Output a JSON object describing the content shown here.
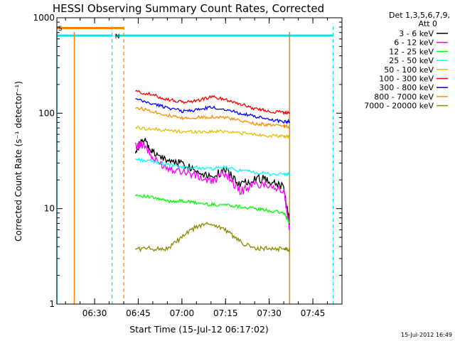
{
  "chart_data": {
    "type": "line",
    "title": "HESSI Observing Summary Count Rates, Corrected",
    "xlabel": "Start Time (15-Jul-12 06:17:02)",
    "ylabel": "Corrected Count Rate (s⁻¹ detector⁻¹)",
    "yscale": "log",
    "ylim": [
      1,
      1000
    ],
    "xlim": [
      "06:17:02",
      "07:55:00"
    ],
    "x_ticks": [
      "06:30",
      "06:45",
      "07:00",
      "07:15",
      "07:30",
      "07:45"
    ],
    "y_ticks": [
      "1",
      "10",
      "100",
      "1000"
    ],
    "legend_header": [
      "Det 1,3,5,6,7,9,",
      "Att 0"
    ],
    "legend_position": "outside-right",
    "footer_date": "15-Jul-2012 16:49",
    "flags": [
      {
        "label": "S",
        "color": "#ff8000"
      },
      {
        "label": "N",
        "color": "#00e5ee"
      }
    ],
    "series": [
      {
        "name": "3 - 6 keV",
        "color": "#000000",
        "x": [
          "06:44",
          "06:47",
          "06:50",
          "06:55",
          "07:00",
          "07:05",
          "07:10",
          "07:15",
          "07:20",
          "07:25",
          "07:30",
          "07:35",
          "07:37"
        ],
        "y": [
          42,
          52,
          38,
          32,
          30,
          25,
          22,
          25,
          18,
          21,
          20,
          17,
          7
        ]
      },
      {
        "name": "6 - 12 keV",
        "color": "#ff00ff",
        "x": [
          "06:44",
          "06:47",
          "06:50",
          "06:55",
          "07:00",
          "07:05",
          "07:10",
          "07:15",
          "07:20",
          "07:25",
          "07:30",
          "07:35",
          "07:37"
        ],
        "y": [
          45,
          48,
          33,
          27,
          25,
          22,
          19,
          24,
          15,
          18,
          18,
          15,
          6
        ]
      },
      {
        "name": "12 - 25 keV",
        "color": "#00ff00",
        "x": [
          "06:44",
          "06:50",
          "06:55",
          "07:00",
          "07:05",
          "07:10",
          "07:15",
          "07:20",
          "07:25",
          "07:30",
          "07:35",
          "07:37"
        ],
        "y": [
          14,
          13,
          12,
          12,
          11.5,
          11,
          11,
          10.5,
          10,
          9.5,
          9,
          7
        ]
      },
      {
        "name": "25 - 50 keV",
        "color": "#00ffff",
        "x": [
          "06:44",
          "06:50",
          "06:55",
          "07:00",
          "07:05",
          "07:10",
          "07:15",
          "07:20",
          "07:25",
          "07:30",
          "07:35",
          "07:37"
        ],
        "y": [
          33,
          31,
          29,
          27,
          27,
          26,
          27,
          25,
          24,
          23,
          23,
          23
        ]
      },
      {
        "name": "50 - 100 keV",
        "color": "#e0c000",
        "x": [
          "06:44",
          "06:50",
          "06:55",
          "07:00",
          "07:05",
          "07:10",
          "07:15",
          "07:20",
          "07:25",
          "07:30",
          "07:35",
          "07:37"
        ],
        "y": [
          71,
          68,
          66,
          64,
          64,
          64,
          65,
          62,
          60,
          58,
          57,
          57
        ]
      },
      {
        "name": "100 - 300 keV",
        "color": "#ff0000",
        "x": [
          "06:44",
          "06:50",
          "06:55",
          "07:00",
          "07:05",
          "07:10",
          "07:15",
          "07:20",
          "07:25",
          "07:30",
          "07:35",
          "07:37"
        ],
        "y": [
          170,
          155,
          140,
          130,
          135,
          148,
          140,
          125,
          112,
          105,
          102,
          102
        ]
      },
      {
        "name": "300 - 800 keV",
        "color": "#0000ff",
        "x": [
          "06:44",
          "06:50",
          "06:55",
          "07:00",
          "07:05",
          "07:10",
          "07:15",
          "07:20",
          "07:25",
          "07:30",
          "07:35",
          "07:37"
        ],
        "y": [
          140,
          125,
          115,
          105,
          108,
          115,
          110,
          100,
          92,
          86,
          82,
          82
        ]
      },
      {
        "name": "800 - 7000 keV",
        "color": "#ff8c00",
        "x": [
          "06:44",
          "06:50",
          "06:55",
          "07:00",
          "07:05",
          "07:10",
          "07:15",
          "07:20",
          "07:25",
          "07:30",
          "07:35",
          "07:37"
        ],
        "y": [
          115,
          105,
          95,
          88,
          90,
          92,
          90,
          83,
          78,
          75,
          73,
          72
        ]
      },
      {
        "name": "7000 - 20000 keV",
        "color": "#8b8b00",
        "x": [
          "06:44",
          "06:50",
          "06:55",
          "07:00",
          "07:05",
          "07:10",
          "07:15",
          "07:20",
          "07:25",
          "07:30",
          "07:35",
          "07:37"
        ],
        "y": [
          3.8,
          3.8,
          3.8,
          5,
          6.5,
          7,
          6,
          4.5,
          3.8,
          3.8,
          3.8,
          3.8
        ]
      }
    ],
    "solid_vlines": [
      {
        "x": "06:17:02",
        "color": "#00e5ee"
      },
      {
        "x": "06:23",
        "color": "#ff8000"
      },
      {
        "x": "07:37",
        "color": "#00e5ee"
      },
      {
        "x": "07:37",
        "color": "#ff8000"
      }
    ],
    "dashed_vlines": [
      {
        "x": "06:36",
        "color": "#00e5ee"
      },
      {
        "x": "06:40",
        "color": "#ff8000"
      },
      {
        "x": "07:52",
        "color": "#00e5ee"
      }
    ],
    "flag_bars": [
      {
        "from": "06:17:02",
        "to": "06:36",
        "level": 650,
        "color": "#00e5ee"
      },
      {
        "from": "06:37",
        "to": "07:52",
        "level": 650,
        "color": "#00e5ee"
      },
      {
        "from": "06:17:02",
        "to": "06:40",
        "level": 780,
        "color": "#ff8000"
      }
    ]
  }
}
